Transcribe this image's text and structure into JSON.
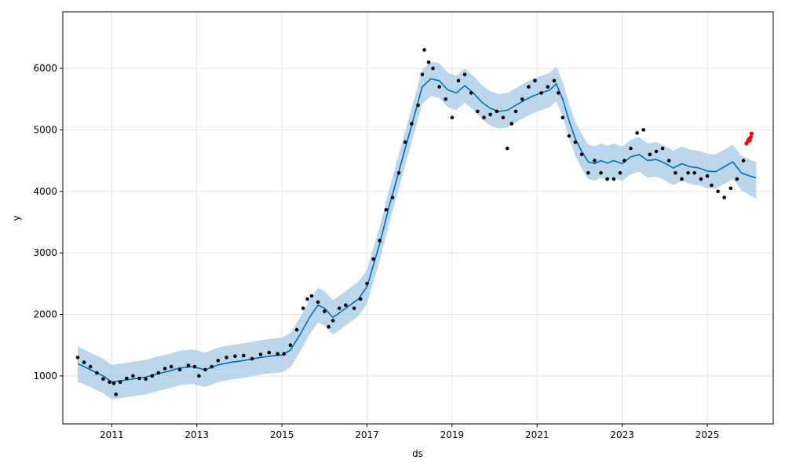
{
  "chart_data": {
    "type": "line",
    "title": "",
    "xlabel": "ds",
    "ylabel": "y",
    "xlim": [
      2009.85,
      2026.55
    ],
    "ylim": [
      220,
      6920
    ],
    "x_ticks": [
      2011,
      2013,
      2015,
      2017,
      2019,
      2021,
      2023,
      2025
    ],
    "x_tick_labels": [
      "2011",
      "2013",
      "2015",
      "2017",
      "2019",
      "2021",
      "2023",
      "2025"
    ],
    "y_ticks": [
      1000,
      2000,
      3000,
      4000,
      5000,
      6000
    ],
    "y_tick_labels": [
      "1000",
      "2000",
      "3000",
      "4000",
      "5000",
      "6000"
    ],
    "grid": true,
    "colors": {
      "observed": "#000000",
      "forecast": "#0072B2",
      "interval": "#a6cae6",
      "recent": "#ff0000"
    },
    "series": [
      {
        "role": "observed",
        "marker": "dot",
        "x": [
          2010.2,
          2010.35,
          2010.5,
          2010.65,
          2010.8,
          2010.95,
          2011.05,
          2011.1,
          2011.2,
          2011.35,
          2011.5,
          2011.65,
          2011.8,
          2011.95,
          2012.1,
          2012.25,
          2012.4,
          2012.6,
          2012.8,
          2012.95,
          2013.05,
          2013.2,
          2013.35,
          2013.5,
          2013.7,
          2013.9,
          2014.1,
          2014.3,
          2014.5,
          2014.7,
          2014.9,
          2015.05,
          2015.2,
          2015.35,
          2015.5,
          2015.6,
          2015.7,
          2015.85,
          2016.0,
          2016.1,
          2016.2,
          2016.35,
          2016.5,
          2016.7,
          2016.85,
          2017.0,
          2017.15,
          2017.3,
          2017.45,
          2017.6,
          2017.75,
          2017.9,
          2018.05,
          2018.2,
          2018.3,
          2018.35,
          2018.45,
          2018.55,
          2018.7,
          2018.85,
          2019.0,
          2019.15,
          2019.3,
          2019.45,
          2019.6,
          2019.75,
          2019.9,
          2020.05,
          2020.2,
          2020.3,
          2020.4,
          2020.5,
          2020.65,
          2020.8,
          2020.95,
          2021.1,
          2021.25,
          2021.4,
          2021.5,
          2021.6,
          2021.75,
          2021.9,
          2022.05,
          2022.2,
          2022.35,
          2022.5,
          2022.65,
          2022.8,
          2022.95,
          2023.05,
          2023.2,
          2023.35,
          2023.5,
          2023.65,
          2023.8,
          2023.95,
          2024.1,
          2024.25,
          2024.4,
          2024.55,
          2024.7,
          2024.85,
          2025.0,
          2025.1,
          2025.25,
          2025.4,
          2025.55,
          2025.7,
          2025.85
        ],
        "y": [
          1300,
          1220,
          1150,
          1050,
          950,
          900,
          880,
          700,
          900,
          960,
          1000,
          960,
          950,
          1000,
          1050,
          1120,
          1150,
          1100,
          1170,
          1150,
          1000,
          1100,
          1150,
          1250,
          1300,
          1320,
          1330,
          1280,
          1350,
          1380,
          1360,
          1360,
          1500,
          1750,
          2100,
          2250,
          2300,
          2200,
          2050,
          1800,
          1900,
          2100,
          2150,
          2100,
          2250,
          2500,
          2900,
          3200,
          3700,
          3900,
          4300,
          4800,
          5100,
          5400,
          5900,
          6300,
          6100,
          6000,
          5700,
          5500,
          5200,
          5800,
          5900,
          5600,
          5300,
          5200,
          5250,
          5300,
          5200,
          4700,
          5100,
          5300,
          5500,
          5700,
          5800,
          5600,
          5700,
          5800,
          5600,
          5200,
          4900,
          4800,
          4600,
          4300,
          4500,
          4300,
          4200,
          4200,
          4300,
          4500,
          4700,
          4950,
          5000,
          4600,
          4650,
          4700,
          4500,
          4300,
          4200,
          4300,
          4300,
          4200,
          4250,
          4100,
          4000,
          3900,
          4050,
          4200,
          4500
        ]
      },
      {
        "role": "recent",
        "marker": "dot",
        "x": [
          2025.92,
          2025.96,
          2025.98,
          2026.0,
          2026.02,
          2026.04
        ],
        "y": [
          4780,
          4820,
          4850,
          4830,
          4880,
          4940
        ]
      },
      {
        "role": "forecast",
        "x": [
          2010.2,
          2010.5,
          2010.8,
          2011.0,
          2011.2,
          2011.5,
          2011.8,
          2012.0,
          2012.3,
          2012.6,
          2012.9,
          2013.2,
          2013.5,
          2013.8,
          2014.1,
          2014.4,
          2014.7,
          2015.0,
          2015.2,
          2015.45,
          2015.65,
          2015.85,
          2016.0,
          2016.2,
          2016.4,
          2016.6,
          2016.8,
          2017.0,
          2017.15,
          2017.3,
          2017.5,
          2017.7,
          2017.9,
          2018.1,
          2018.3,
          2018.5,
          2018.7,
          2018.9,
          2019.1,
          2019.3,
          2019.5,
          2019.7,
          2019.9,
          2020.1,
          2020.3,
          2020.5,
          2020.7,
          2020.9,
          2021.1,
          2021.3,
          2021.45,
          2021.6,
          2021.75,
          2021.9,
          2022.05,
          2022.2,
          2022.35,
          2022.5,
          2022.65,
          2022.8,
          2023.0,
          2023.2,
          2023.4,
          2023.6,
          2023.8,
          2024.0,
          2024.2,
          2024.4,
          2024.6,
          2024.8,
          2025.0,
          2025.2,
          2025.4,
          2025.6,
          2025.8,
          2026.0,
          2026.15
        ],
        "y": [
          1200,
          1100,
          1000,
          900,
          920,
          950,
          980,
          1020,
          1070,
          1130,
          1150,
          1100,
          1180,
          1220,
          1250,
          1290,
          1320,
          1340,
          1420,
          1700,
          1950,
          2150,
          2100,
          1950,
          2050,
          2150,
          2250,
          2450,
          2800,
          3150,
          3700,
          4200,
          4700,
          5200,
          5700,
          5830,
          5800,
          5650,
          5600,
          5720,
          5600,
          5450,
          5350,
          5300,
          5320,
          5400,
          5480,
          5550,
          5600,
          5650,
          5750,
          5500,
          5150,
          4850,
          4650,
          4480,
          4450,
          4500,
          4460,
          4500,
          4450,
          4560,
          4600,
          4500,
          4520,
          4460,
          4380,
          4450,
          4400,
          4380,
          4330,
          4320,
          4400,
          4480,
          4300,
          4250,
          4220
        ]
      },
      {
        "role": "interval",
        "x": [
          2010.2,
          2010.5,
          2010.8,
          2011.0,
          2011.2,
          2011.5,
          2011.8,
          2012.0,
          2012.3,
          2012.6,
          2012.9,
          2013.2,
          2013.5,
          2013.8,
          2014.1,
          2014.4,
          2014.7,
          2015.0,
          2015.2,
          2015.45,
          2015.65,
          2015.85,
          2016.0,
          2016.2,
          2016.4,
          2016.6,
          2016.8,
          2017.0,
          2017.15,
          2017.3,
          2017.5,
          2017.7,
          2017.9,
          2018.1,
          2018.3,
          2018.5,
          2018.7,
          2018.9,
          2019.1,
          2019.3,
          2019.5,
          2019.7,
          2019.9,
          2020.1,
          2020.3,
          2020.5,
          2020.7,
          2020.9,
          2021.1,
          2021.3,
          2021.45,
          2021.6,
          2021.75,
          2021.9,
          2022.05,
          2022.2,
          2022.35,
          2022.5,
          2022.65,
          2022.8,
          2023.0,
          2023.2,
          2023.4,
          2023.6,
          2023.8,
          2024.0,
          2024.2,
          2024.4,
          2024.6,
          2024.8,
          2025.0,
          2025.2,
          2025.4,
          2025.6,
          2025.8,
          2026.0,
          2026.15
        ],
        "lower": [
          900,
          820,
          720,
          620,
          640,
          670,
          700,
          740,
          790,
          850,
          870,
          820,
          900,
          940,
          970,
          1010,
          1040,
          1060,
          1140,
          1420,
          1670,
          1870,
          1820,
          1670,
          1770,
          1870,
          1970,
          2170,
          2520,
          2870,
          3420,
          3920,
          4420,
          4920,
          5420,
          5550,
          5520,
          5370,
          5320,
          5440,
          5320,
          5170,
          5070,
          5020,
          5040,
          5120,
          5200,
          5270,
          5320,
          5370,
          5470,
          5220,
          4870,
          4570,
          4370,
          4200,
          4170,
          4220,
          4180,
          4220,
          4170,
          4280,
          4320,
          4220,
          4240,
          4180,
          4100,
          4170,
          4120,
          4100,
          4050,
          4040,
          4120,
          4200,
          4020,
          3940,
          3880
        ],
        "upper": [
          1480,
          1380,
          1280,
          1180,
          1200,
          1230,
          1260,
          1300,
          1350,
          1410,
          1430,
          1380,
          1460,
          1500,
          1530,
          1570,
          1600,
          1620,
          1700,
          1980,
          2230,
          2430,
          2380,
          2230,
          2330,
          2430,
          2530,
          2730,
          3080,
          3430,
          3980,
          4480,
          4980,
          5480,
          5980,
          6110,
          6080,
          5930,
          5880,
          6000,
          5880,
          5730,
          5630,
          5580,
          5600,
          5680,
          5760,
          5830,
          5880,
          5930,
          6030,
          5780,
          5430,
          5130,
          4930,
          4760,
          4730,
          4780,
          4740,
          4780,
          4730,
          4840,
          4880,
          4780,
          4800,
          4740,
          4660,
          4730,
          4680,
          4660,
          4610,
          4600,
          4680,
          4760,
          4580,
          4520,
          4480
        ]
      }
    ]
  }
}
